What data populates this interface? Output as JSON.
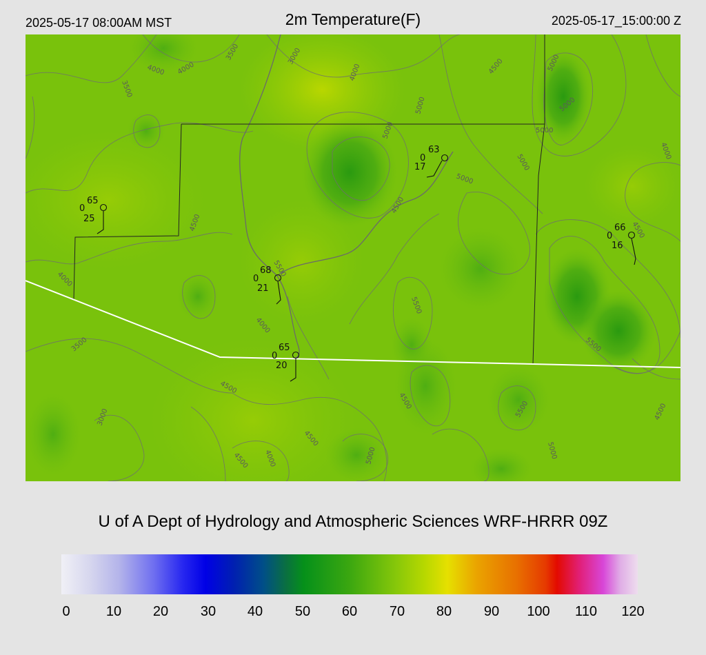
{
  "header": {
    "local_time": "2025-05-17 08:00AM MST",
    "title": "2m Temperature(F)",
    "utc_time": "2025-05-17_15:00:00 Z"
  },
  "credit": "U of A Dept of Hydrology and Atmospheric Sciences WRF-HRRR 09Z",
  "colorbar": {
    "ticks": [
      "0",
      "10",
      "20",
      "30",
      "40",
      "50",
      "60",
      "70",
      "80",
      "90",
      "100",
      "110",
      "120"
    ]
  },
  "stations": [
    {
      "temp": "65",
      "left": "0",
      "bottom": "25"
    },
    {
      "temp": "63",
      "left": "0",
      "bottom": "17"
    },
    {
      "temp": "68",
      "left": "0",
      "bottom": "21"
    },
    {
      "temp": "65",
      "left": "0",
      "bottom": "20"
    },
    {
      "temp": "66",
      "left": "0",
      "bottom": "16"
    }
  ],
  "contour_labels": [
    "3500",
    "4000",
    "4000",
    "3500",
    "3000",
    "4000",
    "5000",
    "4500",
    "5000",
    "5000",
    "5000",
    "5000",
    "4000",
    "5000",
    "5000",
    "4500",
    "4500",
    "4500",
    "4000",
    "4000",
    "5500",
    "3500",
    "4500",
    "3000",
    "4500",
    "4500",
    "4000",
    "5000",
    "4500",
    "5500",
    "5500",
    "5500",
    "5000",
    "4500",
    "4500"
  ],
  "colors": {
    "background": "#e4e4e4",
    "map_base": "#79c20c",
    "state_border": "#ffffff",
    "county_border": "#222222",
    "contour": "#6e6e6e"
  }
}
